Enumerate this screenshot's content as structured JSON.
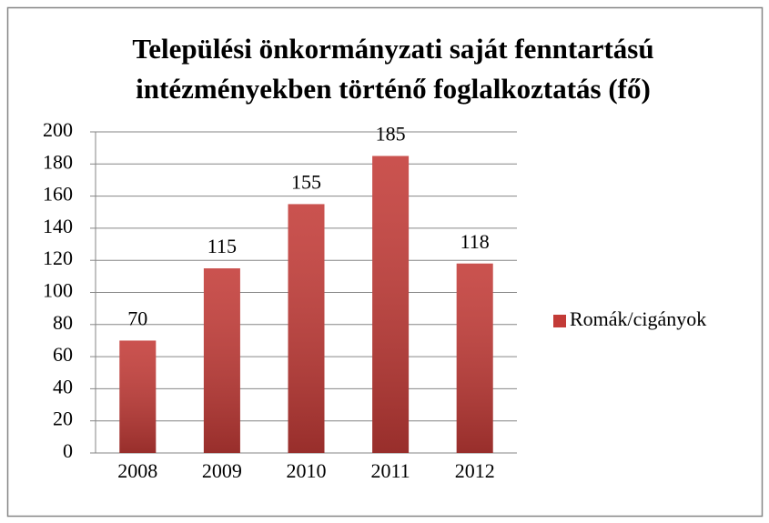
{
  "chart_data": {
    "type": "bar",
    "title": [
      "Települési önkormányzati saját fenntartású",
      "intézményekben történő foglalkoztatás (fő)"
    ],
    "categories": [
      "2008",
      "2009",
      "2010",
      "2011",
      "2012"
    ],
    "series": [
      {
        "name": "Romák/cigányok",
        "color": "#c33b37",
        "values": [
          70,
          115,
          155,
          185,
          118
        ]
      }
    ],
    "ylim": [
      0,
      200
    ],
    "yticks": [
      0,
      20,
      40,
      60,
      80,
      100,
      120,
      140,
      160,
      180,
      200
    ],
    "grid": true,
    "legend": "right"
  }
}
